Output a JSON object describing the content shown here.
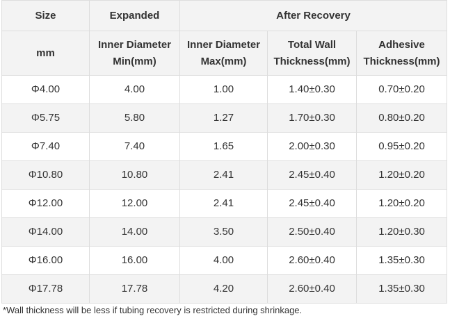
{
  "header": {
    "size": "Size",
    "expanded": "Expanded",
    "after_recovery": "After Recovery",
    "unit_mm": "mm",
    "col_inner_min": [
      "Inner Diameter",
      "Min(mm)"
    ],
    "col_inner_max": [
      "Inner Diameter",
      "Max(mm)"
    ],
    "col_wall": [
      "Total Wall",
      "Thickness(mm)"
    ],
    "col_adhesive": [
      "Adhesive",
      "Thickness(mm)"
    ]
  },
  "rows": [
    [
      "Φ4.00",
      "4.00",
      "1.00",
      "1.40±0.30",
      "0.70±0.20"
    ],
    [
      "Φ5.75",
      "5.80",
      "1.27",
      "1.70±0.30",
      "0.80±0.20"
    ],
    [
      "Φ7.40",
      "7.40",
      "1.65",
      "2.00±0.30",
      "0.95±0.20"
    ],
    [
      "Φ10.80",
      "10.80",
      "2.41",
      "2.45±0.40",
      "1.20±0.20"
    ],
    [
      "Φ12.00",
      "12.00",
      "2.41",
      "2.45±0.40",
      "1.20±0.20"
    ],
    [
      "Φ14.00",
      "14.00",
      "3.50",
      "2.50±0.40",
      "1.20±0.30"
    ],
    [
      "Φ16.00",
      "16.00",
      "4.00",
      "2.60±0.40",
      "1.35±0.30"
    ],
    [
      "Φ17.78",
      "17.78",
      "4.20",
      "2.60±0.40",
      "1.35±0.30"
    ]
  ],
  "footnote": "*Wall thickness will be less if tubing recovery is restricted during shrinkage."
}
